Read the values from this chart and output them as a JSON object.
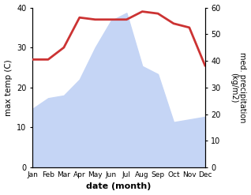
{
  "months": [
    "Jan",
    "Feb",
    "Mar",
    "Apr",
    "May",
    "Jun",
    "Jul",
    "Aug",
    "Sep",
    "Oct",
    "Nov",
    "Dec"
  ],
  "temp": [
    27,
    27,
    30,
    37.5,
    37,
    37,
    37,
    39,
    38.5,
    36,
    35,
    25.5
  ],
  "precip": [
    22,
    26,
    27,
    33,
    45,
    55,
    58,
    38,
    35,
    17,
    18,
    19
  ],
  "temp_color": "#cc3333",
  "precip_fill_color": "#c5d5f5",
  "temp_lw": 2.0,
  "ylabel_left": "max temp (C)",
  "ylabel_right": "med. precipitation\n(kg/m2)",
  "xlabel": "date (month)",
  "ylim_left": [
    0,
    40
  ],
  "ylim_right": [
    0,
    60
  ],
  "yticks_left": [
    0,
    10,
    20,
    30,
    40
  ],
  "yticks_right": [
    0,
    10,
    20,
    30,
    40,
    50,
    60
  ],
  "bg_color": "#ffffff"
}
